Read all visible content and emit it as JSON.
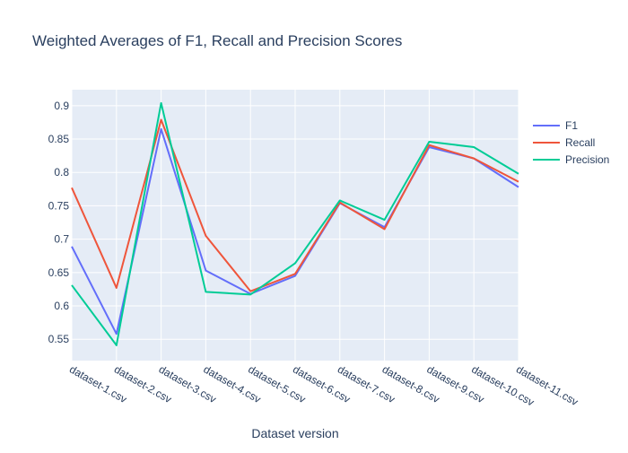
{
  "chart_data": {
    "type": "line",
    "title": "Weighted Averages of F1, Recall and Precision Scores",
    "xlabel": "Dataset version",
    "ylabel": "",
    "categories": [
      "dataset-1.csv",
      "dataset-2.csv",
      "dataset-3.csv",
      "dataset-4.csv",
      "dataset-5.csv",
      "dataset-6.csv",
      "dataset-7.csv",
      "dataset-8.csv",
      "dataset-9.csv",
      "dataset-10.csv",
      "dataset-11.csv"
    ],
    "ylim": [
      0.518,
      0.924
    ],
    "yticks": [
      0.55,
      0.6,
      0.65,
      0.7,
      0.75,
      0.8,
      0.85,
      0.9
    ],
    "ytick_labels": [
      "0.55",
      "0.6",
      "0.65",
      "0.7",
      "0.75",
      "0.8",
      "0.85",
      "0.9"
    ],
    "grid": true,
    "legend_position": "top-right",
    "series": [
      {
        "name": "F1",
        "color": "#636efa",
        "values": [
          0.689,
          0.558,
          0.865,
          0.653,
          0.618,
          0.645,
          0.754,
          0.718,
          0.838,
          0.821,
          0.778
        ]
      },
      {
        "name": "Recall",
        "color": "#ef553b",
        "values": [
          0.777,
          0.627,
          0.879,
          0.705,
          0.622,
          0.648,
          0.755,
          0.715,
          0.841,
          0.821,
          0.786
        ]
      },
      {
        "name": "Precision",
        "color": "#00cc96",
        "values": [
          0.631,
          0.541,
          0.904,
          0.621,
          0.617,
          0.664,
          0.758,
          0.729,
          0.846,
          0.838,
          0.798
        ]
      }
    ]
  }
}
